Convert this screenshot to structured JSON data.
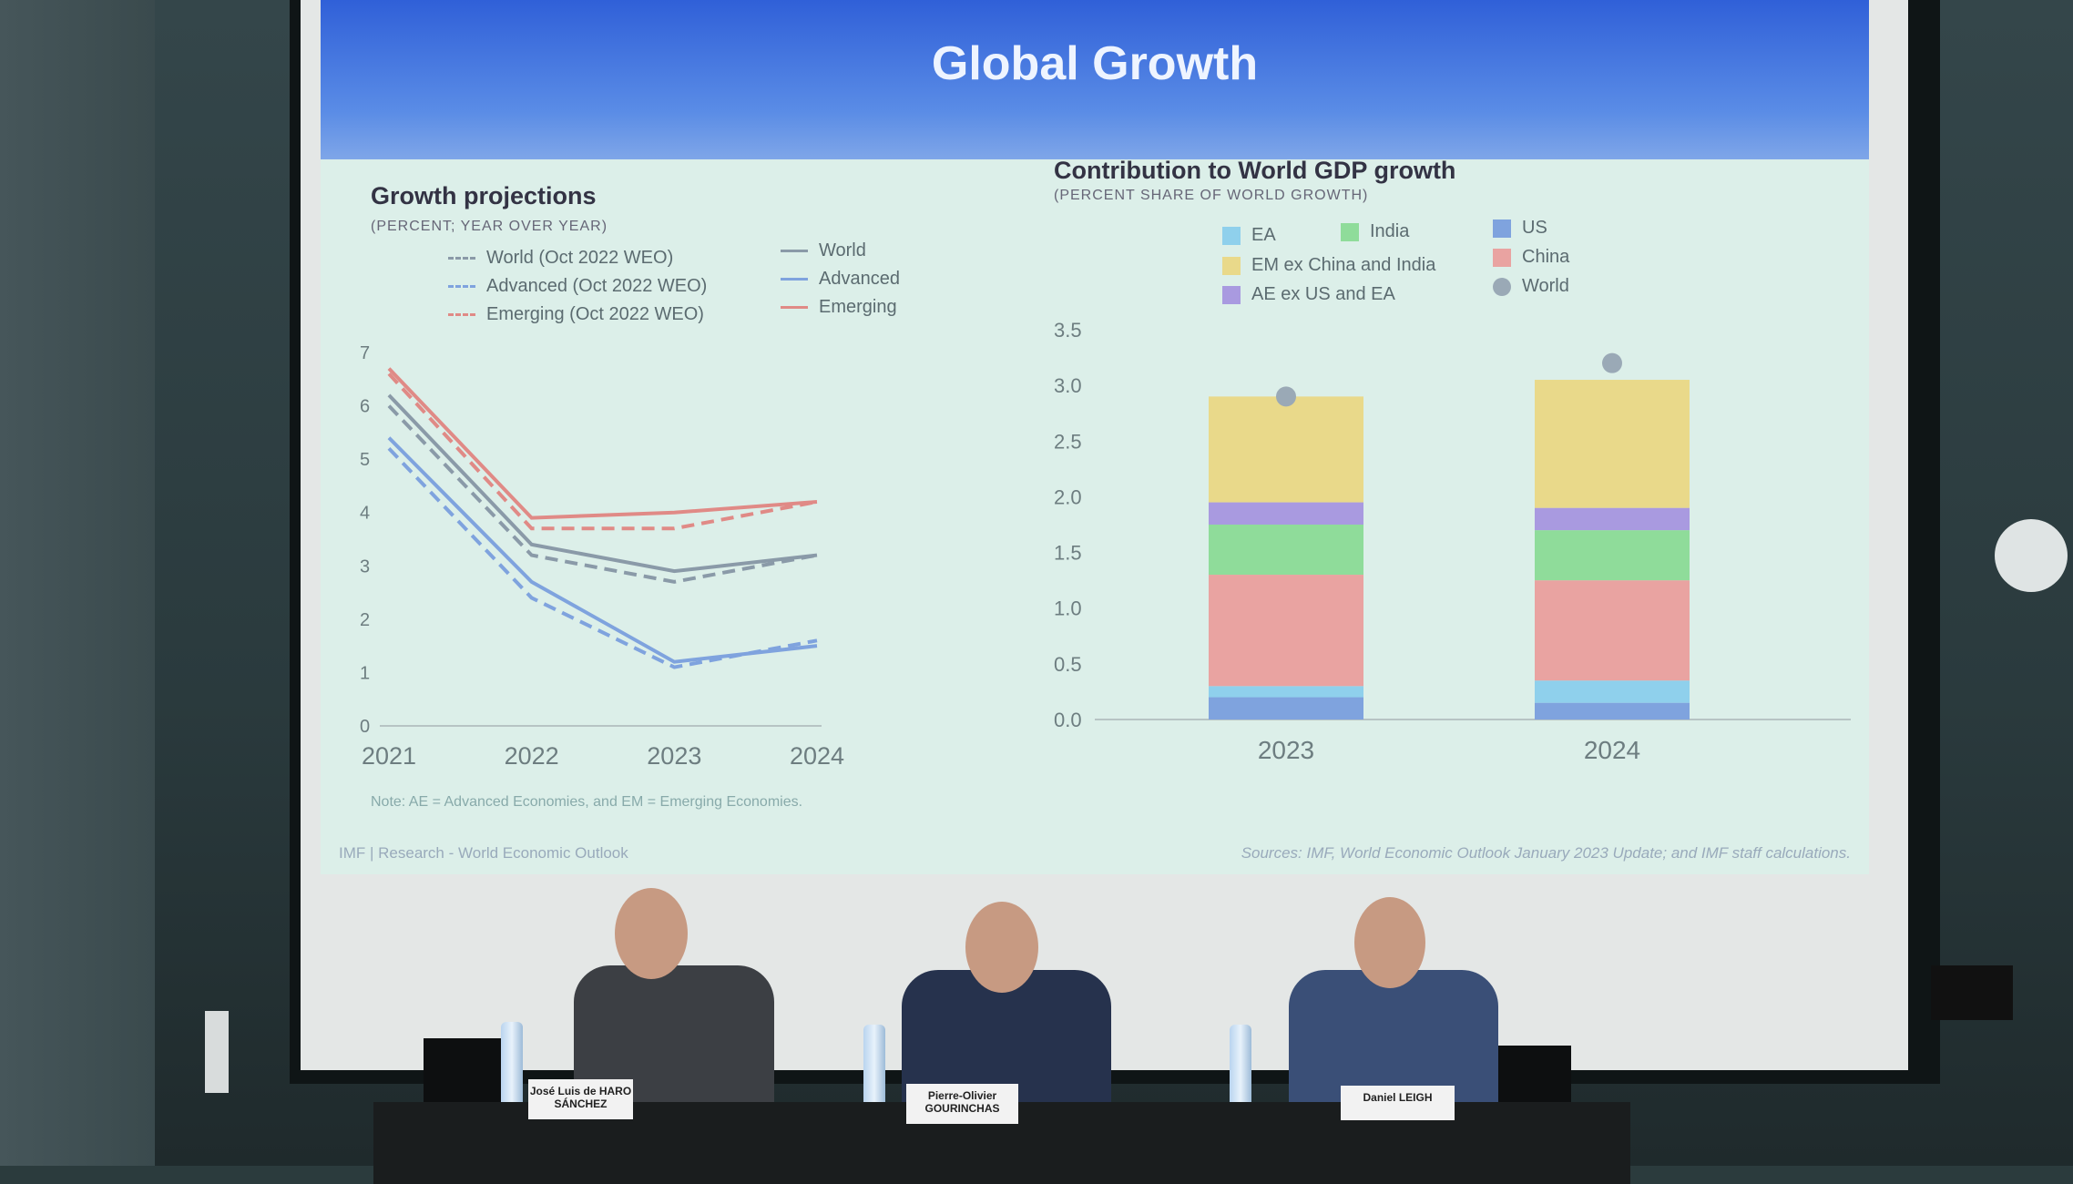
{
  "slide": {
    "title": "Global Growth",
    "note": "Note: AE = Advanced Economies, and EM = Emerging Economies.",
    "footer_left": "IMF | Research - World Economic Outlook",
    "footer_right": "Sources: IMF, World Economic Outlook January 2023 Update; and IMF staff calculations."
  },
  "left_panel": {
    "title": "Growth projections",
    "subtitle": "(PERCENT; YEAR OVER YEAR)",
    "legend": {
      "world_oct": "World (Oct 2022 WEO)",
      "advanced_oct": "Advanced (Oct 2022 WEO)",
      "emerging_oct": "Emerging (Oct 2022 WEO)",
      "world": "World",
      "advanced": "Advanced",
      "emerging": "Emerging"
    }
  },
  "right_panel": {
    "title": "Contribution to World GDP growth",
    "subtitle": "(PERCENT SHARE OF WORLD GROWTH)",
    "legend": {
      "ea": "EA",
      "india": "India",
      "us": "US",
      "em_ex": "EM ex China and India",
      "china": "China",
      "ae_ex": "AE ex US and EA",
      "world": "World"
    }
  },
  "nameplates": {
    "left": "José Luis de HARO SÁNCHEZ",
    "center": "Pierre-Olivier GOURINCHAS",
    "right": "Daniel LEIGH"
  },
  "colors": {
    "world": "#8a9aa8",
    "advanced": "#7fa3de",
    "emerging": "#e08a86",
    "us": "#7fa3de",
    "ea": "#8fd0ec",
    "china": "#e9a3a1",
    "india": "#8fdc9a",
    "ae_ex": "#a99ae0",
    "em_ex": "#e9d98a",
    "world_dot": "#9aa9b6"
  },
  "chart_data": [
    {
      "type": "line",
      "title": "Growth projections",
      "subtitle": "(PERCENT; YEAR OVER YEAR)",
      "x": [
        "2021",
        "2022",
        "2023",
        "2024"
      ],
      "ylim": [
        0,
        7
      ],
      "yticks": [
        "0",
        "1",
        "2",
        "3",
        "4",
        "5",
        "6",
        "7"
      ],
      "series": [
        {
          "name": "World (Oct 2022 WEO)",
          "style": "dashed",
          "color": "world",
          "values": [
            6.0,
            3.2,
            2.7,
            3.2
          ]
        },
        {
          "name": "Advanced (Oct 2022 WEO)",
          "style": "dashed",
          "color": "advanced",
          "values": [
            5.2,
            2.4,
            1.1,
            1.6
          ]
        },
        {
          "name": "Emerging (Oct 2022 WEO)",
          "style": "dashed",
          "color": "emerging",
          "values": [
            6.6,
            3.7,
            3.7,
            4.2
          ]
        },
        {
          "name": "World",
          "style": "solid",
          "color": "world",
          "values": [
            6.2,
            3.4,
            2.9,
            3.2
          ]
        },
        {
          "name": "Advanced",
          "style": "solid",
          "color": "advanced",
          "values": [
            5.4,
            2.7,
            1.2,
            1.5
          ]
        },
        {
          "name": "Emerging",
          "style": "solid",
          "color": "emerging",
          "values": [
            6.7,
            3.9,
            4.0,
            4.2
          ]
        }
      ]
    },
    {
      "type": "bar",
      "stacked": true,
      "title": "Contribution to World GDP growth",
      "subtitle": "(PERCENT SHARE OF WORLD GROWTH)",
      "categories": [
        "2023",
        "2024"
      ],
      "ylim": [
        0,
        3.5
      ],
      "yticks": [
        "0.0",
        "0.5",
        "1.0",
        "1.5",
        "2.0",
        "2.5",
        "3.0",
        "3.5"
      ],
      "series": [
        {
          "name": "US",
          "color": "us",
          "values": [
            0.2,
            0.15
          ]
        },
        {
          "name": "EA",
          "color": "ea",
          "values": [
            0.1,
            0.2
          ]
        },
        {
          "name": "China",
          "color": "china",
          "values": [
            1.0,
            0.9
          ]
        },
        {
          "name": "India",
          "color": "india",
          "values": [
            0.45,
            0.45
          ]
        },
        {
          "name": "AE ex US and EA",
          "color": "ae_ex",
          "values": [
            0.2,
            0.2
          ]
        },
        {
          "name": "EM ex China and India",
          "color": "em_ex",
          "values": [
            0.95,
            1.15
          ]
        }
      ],
      "world_points": {
        "name": "World",
        "values": [
          2.9,
          3.2
        ]
      }
    }
  ]
}
